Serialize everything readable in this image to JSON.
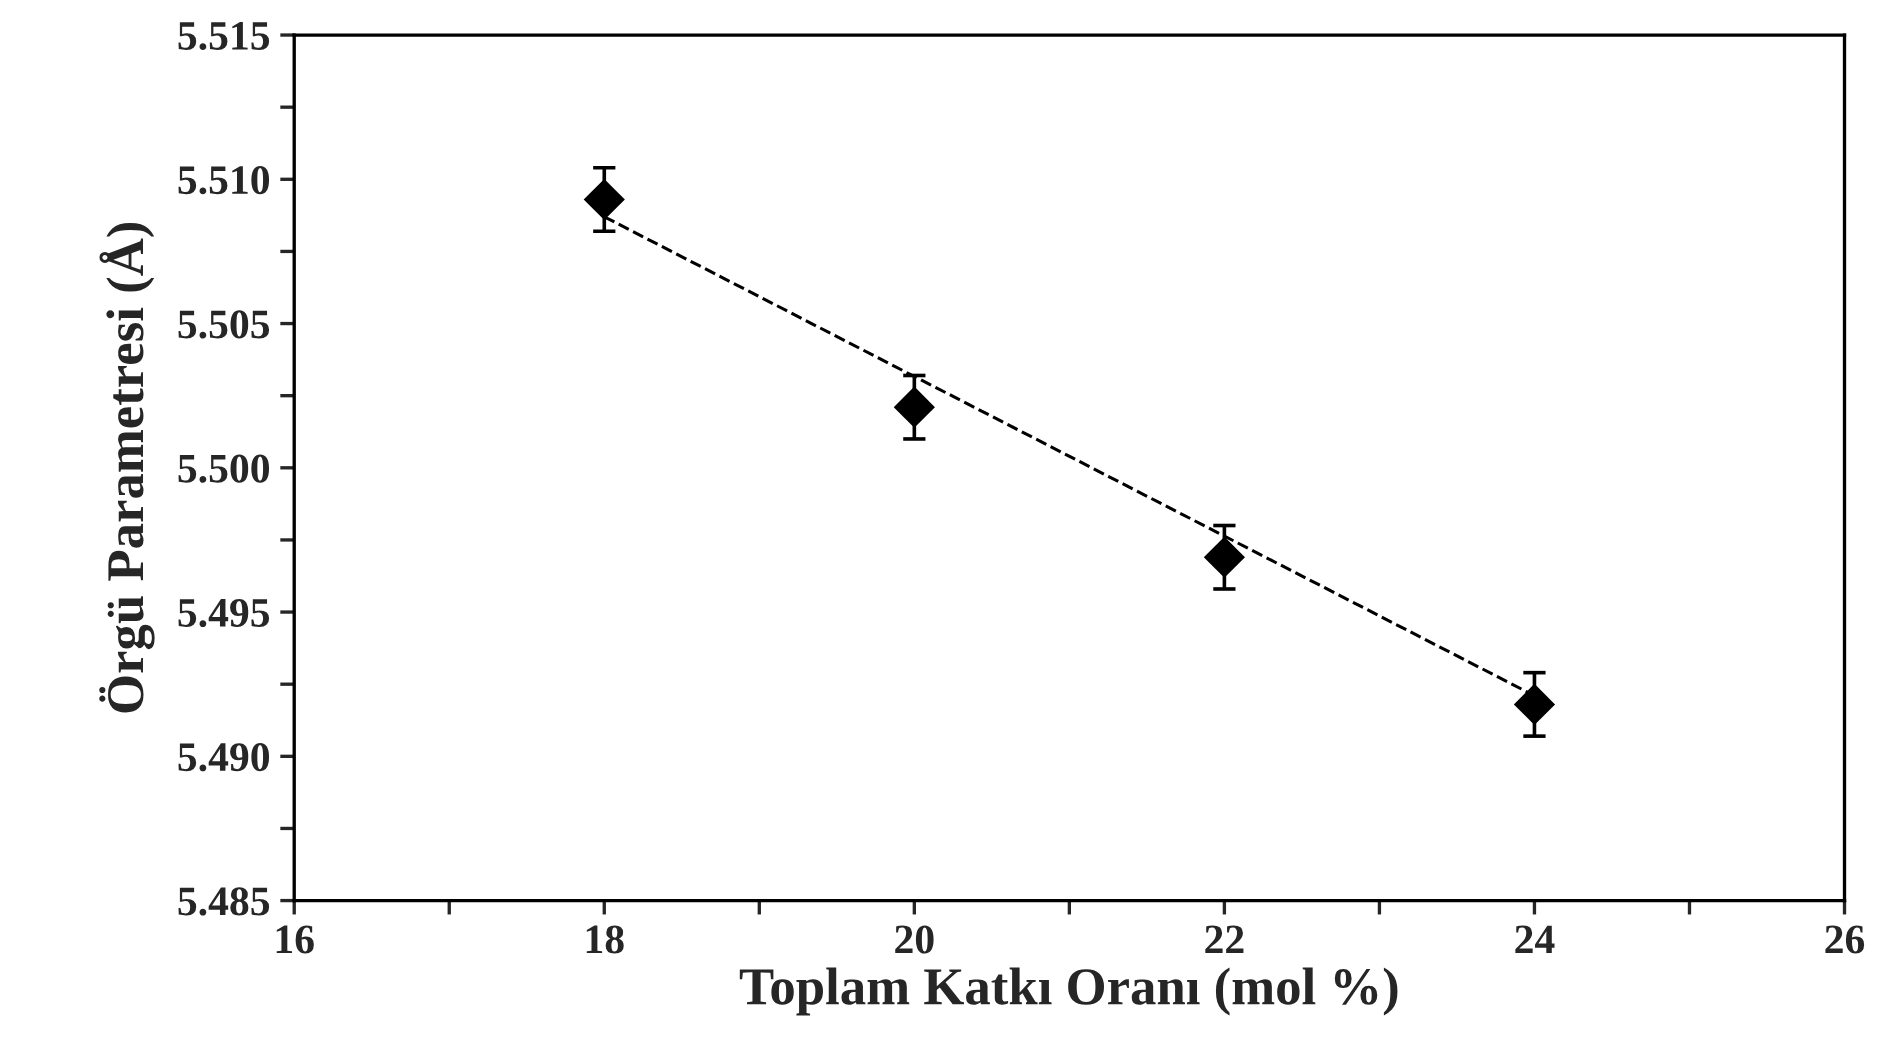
{
  "chart_data": {
    "type": "scatter",
    "xlabel": "Toplam Katkı Oranı (mol %)",
    "ylabel": "Örgü Parametresi (Å)",
    "xlim": [
      16,
      26
    ],
    "ylim": [
      5.485,
      5.515
    ],
    "xticks": [
      16,
      {
        "value": 17,
        "label": null
      },
      18,
      {
        "value": 19,
        "label": null
      },
      20,
      {
        "value": 21,
        "label": null
      },
      22,
      {
        "value": 23,
        "label": null
      },
      24,
      {
        "value": 25,
        "label": null
      },
      26
    ],
    "yticks": [
      {
        "value": 5.485,
        "label": "5.485"
      },
      {
        "value": 5.4875,
        "label": null
      },
      {
        "value": 5.49,
        "label": "5.490"
      },
      {
        "value": 5.4925,
        "label": null
      },
      {
        "value": 5.495,
        "label": "5.495"
      },
      {
        "value": 5.4975,
        "label": null
      },
      {
        "value": 5.5,
        "label": "5.500"
      },
      {
        "value": 5.5025,
        "label": null
      },
      {
        "value": 5.505,
        "label": "5.505"
      },
      {
        "value": 5.5075,
        "label": null
      },
      {
        "value": 5.51,
        "label": "5.510"
      },
      {
        "value": 5.5125,
        "label": null
      },
      {
        "value": 5.515,
        "label": "5.515"
      }
    ],
    "grid": false,
    "legend": false,
    "series": [
      {
        "color": "#000000",
        "marker": "diamond",
        "x": [
          18,
          20,
          22,
          24
        ],
        "values": [
          5.5093,
          5.5021,
          5.4969,
          5.4918
        ],
        "errors": [
          0.0011,
          0.0011,
          0.0011,
          0.0011
        ]
      },
      {
        "type": "line",
        "color": "#000000",
        "line_style": "dashed",
        "marker": "none",
        "x": [
          18,
          24
        ],
        "values": [
          5.5087,
          5.4921
        ]
      }
    ]
  }
}
